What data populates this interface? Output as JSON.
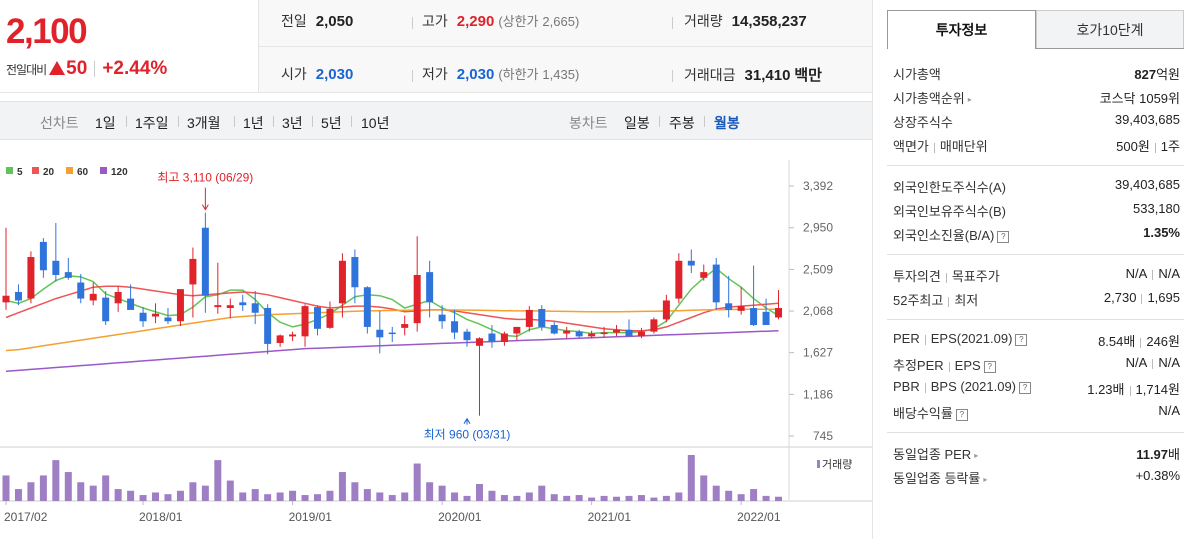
{
  "price": {
    "current": "2,100",
    "change_label": "전일대비",
    "change_amount": "50",
    "change_pct": "+2.44%"
  },
  "info": {
    "prev_label": "전일",
    "prev_value": "2,050",
    "high_label": "고가",
    "high_value": "2,290",
    "upper_label": "(상한가",
    "upper_value": "2,665)",
    "volume_label": "거래량",
    "volume_value": "14,358,237",
    "open_label": "시가",
    "open_value": "2,030",
    "low_label": "저가",
    "low_value": "2,030",
    "lower_label": "(하한가",
    "lower_value": "1,435)",
    "amount_label": "거래대금",
    "amount_value": "31,410",
    "amount_unit": "백만"
  },
  "tabs": {
    "line_label": "선차트",
    "line_periods": [
      "1일",
      "1주일",
      "3개월",
      "1년",
      "3년",
      "5년",
      "10년"
    ],
    "candle_label": "봉차트",
    "candle_periods": [
      "일봉",
      "주봉",
      "월봉"
    ],
    "selected_candle": "월봉"
  },
  "chart_data": {
    "type": "candlestick",
    "interval": "monthly",
    "legend": [
      {
        "name": "5",
        "color": "#62c458"
      },
      {
        "name": "20",
        "color": "#ee5555"
      },
      {
        "name": "60",
        "color": "#f5a030"
      },
      {
        "name": "120",
        "color": "#9b59c8"
      }
    ],
    "y_ticks": [
      3392,
      2950,
      2509,
      2068,
      1627,
      1186,
      745
    ],
    "y_tick_labels": [
      "3,392",
      "2,950",
      "2,509",
      "2,068",
      "1,627",
      "1,186",
      "745"
    ],
    "ylim": [
      745,
      3392
    ],
    "x_tick_labels": [
      "2017/02",
      "2018/01",
      "2019/01",
      "2020/01",
      "2021/01",
      "2022/01"
    ],
    "high_annotation": "최고 3,110 (06/29)",
    "low_annotation": "최저 960 (03/31)",
    "high_point": {
      "month_index": 16,
      "value": 3110
    },
    "low_point": {
      "month_index": 37,
      "value": 960
    },
    "volume_label": "거래량",
    "up_color": "#e0222b",
    "down_color": "#2f74db",
    "candles": [
      {
        "o": 2160,
        "h": 2950,
        "l": 2080,
        "c": 2230
      },
      {
        "o": 2270,
        "h": 2350,
        "l": 2130,
        "c": 2180
      },
      {
        "o": 2200,
        "h": 2700,
        "l": 2150,
        "c": 2640
      },
      {
        "o": 2800,
        "h": 2840,
        "l": 2420,
        "c": 2500
      },
      {
        "o": 2600,
        "h": 3000,
        "l": 2380,
        "c": 2450
      },
      {
        "o": 2480,
        "h": 2630,
        "l": 2400,
        "c": 2420
      },
      {
        "o": 2370,
        "h": 2460,
        "l": 2150,
        "c": 2200
      },
      {
        "o": 2180,
        "h": 2370,
        "l": 2130,
        "c": 2250
      },
      {
        "o": 2210,
        "h": 2280,
        "l": 1920,
        "c": 1960
      },
      {
        "o": 2150,
        "h": 2330,
        "l": 2060,
        "c": 2270
      },
      {
        "o": 2200,
        "h": 2350,
        "l": 2100,
        "c": 2080
      },
      {
        "o": 2050,
        "h": 2110,
        "l": 1900,
        "c": 1960
      },
      {
        "o": 2010,
        "h": 2150,
        "l": 1940,
        "c": 2040
      },
      {
        "o": 2000,
        "h": 2100,
        "l": 1930,
        "c": 1960
      },
      {
        "o": 1960,
        "h": 2280,
        "l": 1910,
        "c": 2300
      },
      {
        "o": 2350,
        "h": 2740,
        "l": 2000,
        "c": 2620
      },
      {
        "o": 2950,
        "h": 3110,
        "l": 2050,
        "c": 2230
      },
      {
        "o": 2110,
        "h": 2580,
        "l": 2040,
        "c": 2130
      },
      {
        "o": 2100,
        "h": 2200,
        "l": 1990,
        "c": 2130
      },
      {
        "o": 2160,
        "h": 2240,
        "l": 2070,
        "c": 2130
      },
      {
        "o": 2150,
        "h": 2280,
        "l": 1930,
        "c": 2050
      },
      {
        "o": 2100,
        "h": 2140,
        "l": 1610,
        "c": 1720
      },
      {
        "o": 1730,
        "h": 1820,
        "l": 1690,
        "c": 1810
      },
      {
        "o": 1800,
        "h": 1850,
        "l": 1750,
        "c": 1820
      },
      {
        "o": 1800,
        "h": 2140,
        "l": 1690,
        "c": 2120
      },
      {
        "o": 2110,
        "h": 2130,
        "l": 1810,
        "c": 1880
      },
      {
        "o": 1890,
        "h": 2170,
        "l": 1880,
        "c": 2090
      },
      {
        "o": 2150,
        "h": 2680,
        "l": 2000,
        "c": 2600
      },
      {
        "o": 2640,
        "h": 2720,
        "l": 2150,
        "c": 2320
      },
      {
        "o": 2320,
        "h": 2330,
        "l": 1830,
        "c": 1900
      },
      {
        "o": 1870,
        "h": 2070,
        "l": 1620,
        "c": 1790
      },
      {
        "o": 1840,
        "h": 1900,
        "l": 1740,
        "c": 1830
      },
      {
        "o": 1890,
        "h": 2020,
        "l": 1810,
        "c": 1930
      },
      {
        "o": 1940,
        "h": 2860,
        "l": 1850,
        "c": 2450
      },
      {
        "o": 2480,
        "h": 2600,
        "l": 2000,
        "c": 2160
      },
      {
        "o": 2030,
        "h": 2130,
        "l": 1880,
        "c": 1960
      },
      {
        "o": 1960,
        "h": 2080,
        "l": 1770,
        "c": 1840
      },
      {
        "o": 1850,
        "h": 1880,
        "l": 1690,
        "c": 1760
      },
      {
        "o": 1700,
        "h": 1790,
        "l": 960,
        "c": 1780
      },
      {
        "o": 1830,
        "h": 1920,
        "l": 1680,
        "c": 1740
      },
      {
        "o": 1740,
        "h": 1850,
        "l": 1700,
        "c": 1830
      },
      {
        "o": 1830,
        "h": 1900,
        "l": 1760,
        "c": 1900
      },
      {
        "o": 1900,
        "h": 2120,
        "l": 1850,
        "c": 2080
      },
      {
        "o": 2090,
        "h": 2130,
        "l": 1860,
        "c": 1900
      },
      {
        "o": 1920,
        "h": 1950,
        "l": 1820,
        "c": 1830
      },
      {
        "o": 1830,
        "h": 1900,
        "l": 1780,
        "c": 1860
      },
      {
        "o": 1850,
        "h": 1870,
        "l": 1780,
        "c": 1800
      },
      {
        "o": 1800,
        "h": 1860,
        "l": 1780,
        "c": 1830
      },
      {
        "o": 1830,
        "h": 1900,
        "l": 1790,
        "c": 1840
      },
      {
        "o": 1840,
        "h": 1920,
        "l": 1800,
        "c": 1870
      },
      {
        "o": 1870,
        "h": 1980,
        "l": 1800,
        "c": 1800
      },
      {
        "o": 1800,
        "h": 1890,
        "l": 1780,
        "c": 1850
      },
      {
        "o": 1850,
        "h": 2000,
        "l": 1830,
        "c": 1980
      },
      {
        "o": 1980,
        "h": 2240,
        "l": 1950,
        "c": 2180
      },
      {
        "o": 2200,
        "h": 2680,
        "l": 2150,
        "c": 2600
      },
      {
        "o": 2600,
        "h": 2720,
        "l": 2470,
        "c": 2550
      },
      {
        "o": 2420,
        "h": 2560,
        "l": 2390,
        "c": 2480
      },
      {
        "o": 2560,
        "h": 2630,
        "l": 2080,
        "c": 2160
      },
      {
        "o": 2150,
        "h": 2440,
        "l": 2000,
        "c": 2080
      },
      {
        "o": 2070,
        "h": 2320,
        "l": 2030,
        "c": 2120
      },
      {
        "o": 2100,
        "h": 2550,
        "l": 1910,
        "c": 1920
      },
      {
        "o": 2060,
        "h": 2200,
        "l": 1940,
        "c": 1920
      },
      {
        "o": 2000,
        "h": 2290,
        "l": 1980,
        "c": 2100
      }
    ],
    "volumes": [
      30,
      14,
      22,
      30,
      48,
      34,
      22,
      18,
      30,
      14,
      12,
      7,
      10,
      8,
      12,
      22,
      18,
      48,
      24,
      10,
      14,
      8,
      10,
      12,
      7,
      8,
      12,
      34,
      22,
      14,
      10,
      7,
      10,
      44,
      22,
      18,
      10,
      6,
      20,
      12,
      7,
      6,
      10,
      18,
      8,
      6,
      7,
      4,
      6,
      5,
      6,
      7,
      4,
      6,
      10,
      54,
      30,
      18,
      12,
      8,
      14,
      6,
      5
    ],
    "ma_series": [
      {
        "name": "5",
        "values": [
          2180,
          2150,
          2200,
          2300,
          2390,
          2440,
          2430,
          2380,
          2250,
          2200,
          2150,
          2100,
          2060,
          2020,
          2030,
          2110,
          2220,
          2240,
          2290,
          2290,
          2190,
          2050,
          1950,
          1900,
          1930,
          1980,
          2040,
          2130,
          2220,
          2240,
          2230,
          2190,
          2100,
          2140,
          2180,
          2100,
          2050,
          1980,
          1930,
          1870,
          1810,
          1800,
          1870,
          1900,
          1880,
          1860,
          1850,
          1830,
          1840,
          1840,
          1840,
          1850,
          1880,
          1960,
          2130,
          2300,
          2420,
          2520,
          2410,
          2320,
          2200,
          2100,
          2020
        ]
      },
      {
        "name": "20",
        "values": [
          2000,
          2050,
          2100,
          2150,
          2200,
          2240,
          2280,
          2320,
          2330,
          2330,
          2320,
          2300,
          2280,
          2260,
          2240,
          2230,
          2240,
          2250,
          2260,
          2270,
          2260,
          2240,
          2210,
          2180,
          2150,
          2120,
          2100,
          2110,
          2120,
          2120,
          2110,
          2090,
          2060,
          2070,
          2080,
          2080,
          2070,
          2050,
          2030,
          2010,
          1990,
          1980,
          1980,
          1970,
          1960,
          1940,
          1920,
          1900,
          1880,
          1870,
          1860,
          1860,
          1870,
          1900,
          1950,
          2000,
          2050,
          2090,
          2110,
          2120,
          2130,
          2140,
          2150
        ]
      },
      {
        "name": "60",
        "values": [
          1650,
          1660,
          1680,
          1700,
          1720,
          1740,
          1760,
          1780,
          1800,
          1820,
          1840,
          1860,
          1880,
          1900,
          1920,
          1940,
          1960,
          1980,
          2000,
          2010,
          2020,
          2030,
          2035,
          2040,
          2045,
          2050,
          2055,
          2060,
          2065,
          2070,
          2072,
          2074,
          2076,
          2078,
          2080,
          2080,
          2079,
          2078,
          2076,
          2074,
          2072,
          2070,
          2070,
          2068,
          2066,
          2064,
          2062,
          2060,
          2060,
          2060,
          2062,
          2064,
          2066,
          2068,
          2072,
          2076,
          2080,
          2082,
          2084,
          2085,
          2086,
          2086,
          2086
        ]
      },
      {
        "name": "120",
        "values": [
          1430,
          1440,
          1450,
          1460,
          1470,
          1480,
          1490,
          1500,
          1510,
          1520,
          1530,
          1540,
          1550,
          1560,
          1570,
          1580,
          1590,
          1600,
          1610,
          1620,
          1630,
          1640,
          1650,
          1660,
          1670,
          1675,
          1680,
          1685,
          1690,
          1695,
          1700,
          1705,
          1710,
          1715,
          1720,
          1725,
          1730,
          1735,
          1740,
          1745,
          1750,
          1755,
          1760,
          1765,
          1770,
          1775,
          1780,
          1785,
          1790,
          1795,
          1800,
          1805,
          1810,
          1815,
          1820,
          1825,
          1830,
          1835,
          1840,
          1845,
          1850,
          1855,
          1860
        ]
      }
    ]
  },
  "right_panel": {
    "tab_info": "투자정보",
    "tab_order": "호가10단계",
    "market_cap_label": "시가총액",
    "market_cap_value": "827",
    "market_cap_unit": "억원",
    "cap_rank_label": "시가총액순위",
    "cap_rank_value": "코스닥 1059위",
    "shares_label": "상장주식수",
    "shares_value": "39,403,685",
    "par_label": "액면가",
    "unit_label": "매매단위",
    "par_value": "500원",
    "unit_value": "1주",
    "foreign_limit_label": "외국인한도주식수(A)",
    "foreign_limit_value": "39,403,685",
    "foreign_hold_label": "외국인보유주식수(B)",
    "foreign_hold_value": "533,180",
    "foreign_ratio_label": "외국인소진율(B/A)",
    "foreign_ratio_value": "1.35%",
    "opinion_label": "투자의견",
    "target_label": "목표주가",
    "opinion_value": "N/A",
    "target_value": "N/A",
    "w52_high_label": "52주최고",
    "w52_low_label": "최저",
    "w52_high_value": "2,730",
    "w52_low_value": "1,695",
    "per_label": "PER",
    "eps_label": "EPS(2021.09)",
    "per_value": "8.54배",
    "eps_value": "246원",
    "est_per_label": "추정PER",
    "est_eps_label": "EPS",
    "est_per_value": "N/A",
    "est_eps_value": "N/A",
    "pbr_label": "PBR",
    "bps_label": "BPS (2021.09)",
    "pbr_value": "1.23배",
    "bps_value": "1,714원",
    "dividend_label": "배당수익률",
    "dividend_value": "N/A",
    "ind_per_label": "동일업종 PER",
    "ind_per_value": "11.97",
    "ind_per_unit": "배",
    "ind_chg_label": "동일업종 등락률",
    "ind_chg_value": "+0.38%"
  }
}
